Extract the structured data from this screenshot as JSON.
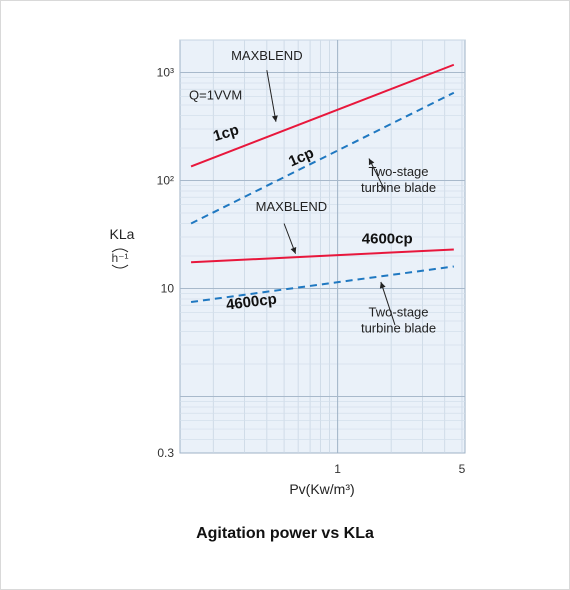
{
  "caption": "Agitation power vs KLa",
  "chart_data": {
    "type": "line",
    "title": "Agitation power vs KLa",
    "xlabel": "Pv(Kw/m³)",
    "ylabel": "KLa",
    "ylabel_unit": "h⁻¹",
    "x_scale": "log",
    "y_scale": "log",
    "xlim": [
      0.13,
      5.2
    ],
    "ylim": [
      0.3,
      2000
    ],
    "x_ticks": [
      {
        "value": 1,
        "label": "1"
      },
      {
        "value": 5,
        "label": "5"
      }
    ],
    "y_ticks": [
      {
        "value": 0.3,
        "label": "0.3"
      },
      {
        "value": 10,
        "label": "10"
      },
      {
        "value": 100,
        "label": "10²"
      },
      {
        "value": 1000,
        "label": "10³"
      }
    ],
    "grid": true,
    "condition_label": "Q=1VVM",
    "series": [
      {
        "name": "MAXBLEND 1cp",
        "color": "#e8173c",
        "dash": false,
        "x": [
          0.15,
          4.5
        ],
        "y": [
          135,
          1180
        ]
      },
      {
        "name": "Two-stage turbine blade 1cp",
        "color": "#1f78c1",
        "dash": true,
        "x": [
          0.15,
          4.5
        ],
        "y": [
          40,
          650
        ]
      },
      {
        "name": "MAXBLEND 4600cp",
        "color": "#e8173c",
        "dash": false,
        "x": [
          0.15,
          4.5
        ],
        "y": [
          17.5,
          23
        ]
      },
      {
        "name": "Two-stage turbine blade 4600cp",
        "color": "#1f78c1",
        "dash": true,
        "x": [
          0.15,
          4.5
        ],
        "y": [
          7.5,
          16
        ]
      }
    ],
    "annotations": [
      {
        "text": "MAXBLEND",
        "x": 0.4,
        "y": 1300
      },
      {
        "text": "Two-stage turbine blade",
        "x": 2.2,
        "y": 110
      },
      {
        "text": "MAXBLEND",
        "x": 0.55,
        "y": 52
      },
      {
        "text": "Two-stage turbine blade",
        "x": 2.2,
        "y": 5.5
      }
    ],
    "series_labels": [
      {
        "text": "1cp",
        "x": 0.24,
        "y": 250,
        "rotate": -17
      },
      {
        "text": "1cp",
        "x": 0.64,
        "y": 150,
        "rotate": -24
      },
      {
        "text": "4600cp",
        "x": 1.9,
        "y": 26
      },
      {
        "text": "4600cp",
        "x": 0.33,
        "y": 6.8,
        "rotate": -7
      }
    ]
  }
}
